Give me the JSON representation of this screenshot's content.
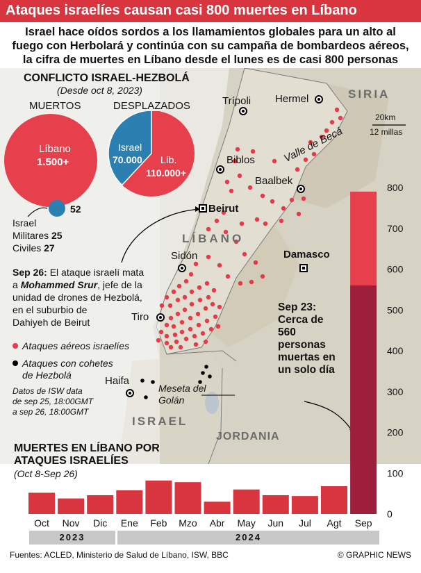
{
  "title": "Ataques israelíes causan casi 800 muertes en Líbano",
  "subtitle_lines": [
    "Israel hace oídos sordos a los llamamientos globales para un alto al",
    "fuego con Herbolará y continúa con su campaña de bombardeos aéreos,",
    "la cifra de muertes en Líbano desde el lunes es de casi 800 personas"
  ],
  "conflict": {
    "title": "CONFLICTO ISRAEL-HEZBOLÁ",
    "since": "(Desde oct 8, 2023)",
    "muertos_label": "MUERTOS",
    "desplazados_label": "DESPLAZADOS",
    "lebanon_label": "Líbano",
    "lebanon_value": "1.500+",
    "israel_dead_value": "52",
    "israel_label": "Israel",
    "military_label": "Militares",
    "military_value": "25",
    "civilians_label": "Civiles",
    "civilians_value": "27",
    "displaced_israel_label": "Israel",
    "displaced_israel_value": "70.000",
    "displaced_lib_label": "Líb.",
    "displaced_lib_value": "110.000+"
  },
  "map": {
    "places": {
      "tripoli": "Trípoli",
      "hermel": "Hermel",
      "siria": "SIRIA",
      "biblos": "Biblos",
      "baalbek": "Baalbek",
      "beirut": "Beirut",
      "libano": "LÍBANO",
      "sidon": "Sidón",
      "damasco": "Damasco",
      "tiro": "Tiro",
      "haifa": "Haifa",
      "golan": "Meseta del Golán",
      "israel": "ISRAEL",
      "jordania": "JORDANIA",
      "beca": "Valle de Becá"
    },
    "scale_km": "20km",
    "scale_mi": "12 millas",
    "sep26_date": "Sep 26:",
    "sep26_text_1": " El ataque israelí mata",
    "sep26_a": "a ",
    "sep26_name": "Mohammed Srur",
    "sep26_text_2": ", jefe de la",
    "sep26_text_3": "unidad de drones de Hezbolá,",
    "sep26_text_4": "en el suburbio de",
    "sep26_text_5": "Dahiyeh de Beirut",
    "legend_air": "Ataques aéreos israelíes",
    "legend_rocket_1": "Ataques con cohetes",
    "legend_rocket_2": "de Hezbolá",
    "isw_1": "Datos de ISW data",
    "isw_2": "de sep 25, 18:00GMT",
    "isw_3": "a sep 26, 18:00GMT",
    "sep23_lines": [
      "Sep 23:",
      "Cerca de",
      "560",
      "personas",
      "muertas en",
      "un solo día"
    ]
  },
  "colors": {
    "accent": "#d8353f",
    "israel": "#2b7fb1",
    "dark_red": "#9e1f3b",
    "light_red": "#e5404c"
  },
  "chart_data": {
    "type": "bar",
    "title": "MUERTES EN LÍBANO POR",
    "title_2": "ATAQUES ISRAELÍES",
    "subtitle": "(Oct 8-Sep 26)",
    "categories": [
      "Oct",
      "Nov",
      "Dic",
      "Ene",
      "Feb",
      "Mzo",
      "Abr",
      "May",
      "Jun",
      "Jul",
      "Agt",
      "Sep"
    ],
    "values": [
      52,
      38,
      46,
      58,
      82,
      78,
      30,
      60,
      46,
      44,
      68,
      790
    ],
    "sep_breakdown": {
      "sep23": 560,
      "total": 790
    },
    "ylim": [
      0,
      800
    ],
    "yticks": [
      0,
      100,
      200,
      300,
      400,
      500,
      600,
      700,
      800
    ],
    "years": [
      "2023",
      "2024"
    ]
  },
  "footer": {
    "sources": "Fuentes: ACLED, Ministerio de Salud de Líbano, ISW, BBC",
    "credit": "© GRAPHIC NEWS"
  }
}
